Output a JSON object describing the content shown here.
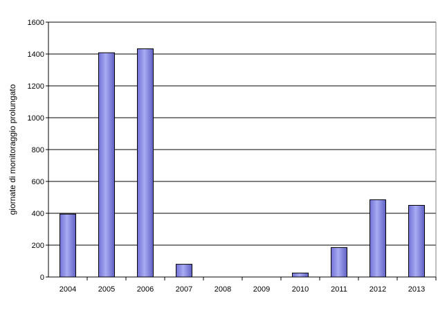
{
  "chart_data": {
    "type": "bar",
    "categories": [
      "2004",
      "2005",
      "2006",
      "2007",
      "2008",
      "2009",
      "2010",
      "2011",
      "2012",
      "2013"
    ],
    "values": [
      395,
      1408,
      1433,
      80,
      0,
      0,
      25,
      185,
      485,
      450
    ],
    "ylabel": "giornate di monitoraggio prolungato",
    "ylim": [
      0,
      1600
    ],
    "yticks": [
      0,
      200,
      400,
      600,
      800,
      1000,
      1200,
      1400,
      1600
    ],
    "grid": true,
    "bar_color": "#8f91e6"
  }
}
